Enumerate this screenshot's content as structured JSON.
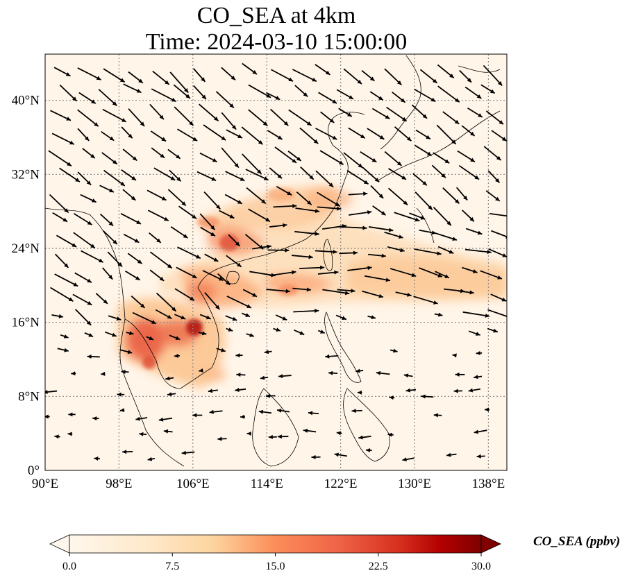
{
  "title": {
    "line1": "CO_SEA at 4km",
    "line2": "Time: 2024-03-10 15:00:00"
  },
  "map": {
    "extent": {
      "lon_min": 90,
      "lon_max": 140,
      "lat_min": 0,
      "lat_max": 45
    },
    "lon_ticks": [
      {
        "value": 90,
        "label": "90°E"
      },
      {
        "value": 98,
        "label": "98°E"
      },
      {
        "value": 106,
        "label": "106°E"
      },
      {
        "value": 114,
        "label": "114°E"
      },
      {
        "value": 122,
        "label": "122°E"
      },
      {
        "value": 130,
        "label": "130°E"
      },
      {
        "value": 138,
        "label": "138°E"
      }
    ],
    "lat_ticks": [
      {
        "value": 0,
        "label": "0°"
      },
      {
        "value": 8,
        "label": "8°N"
      },
      {
        "value": 16,
        "label": "16°N"
      },
      {
        "value": 24,
        "label": "24°N"
      },
      {
        "value": 32,
        "label": "32°N"
      },
      {
        "value": 40,
        "label": "40°N"
      }
    ],
    "gridlines": true,
    "field": "CO_SEA",
    "high_concentration_regions": [
      {
        "lon": 101,
        "lat": 14,
        "value": 22
      },
      {
        "lon": 106,
        "lat": 15,
        "value": 27
      },
      {
        "lon": 110,
        "lat": 24.5,
        "value": 18
      },
      {
        "lon": 117,
        "lat": 19,
        "value": 14
      },
      {
        "lon": 114,
        "lat": 28,
        "value": 12
      },
      {
        "lon": 124,
        "lat": 20,
        "value": 10
      },
      {
        "lon": 132,
        "lat": 21,
        "value": 6
      }
    ],
    "wind_vectors": "westerly flow north of ~16°N; weak easterly flow south of ~16°N"
  },
  "colorbar": {
    "cmap": "OrRd",
    "min": 0.0,
    "max": 30.0,
    "ticks": [
      "0.0",
      "7.5",
      "15.0",
      "22.5",
      "30.0"
    ],
    "label": "CO_SEA (ppbv)",
    "extend": "both"
  }
}
